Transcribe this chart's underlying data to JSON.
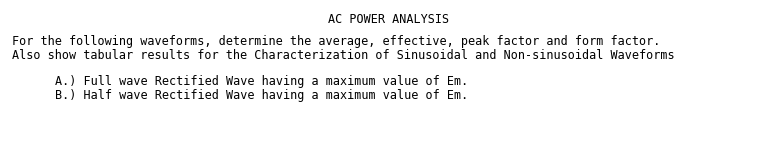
{
  "title": "AC POWER ANALYSIS",
  "line1": "For the following waveforms, determine the average, effective, peak factor and form factor.",
  "line2": "Also show tabular results for the Characterization of Sinusoidal and Non-sinusoidal Waveforms",
  "item_a": "A.) Full wave Rectified Wave having a maximum value of Em.",
  "item_b": "B.) Half wave Rectified Wave having a maximum value of Em.",
  "bg_color": "#ffffff",
  "text_color": "#000000",
  "title_fontsize": 8.5,
  "body_fontsize": 8.5,
  "font_family": "monospace",
  "fig_width": 7.78,
  "fig_height": 1.53,
  "dpi": 100
}
